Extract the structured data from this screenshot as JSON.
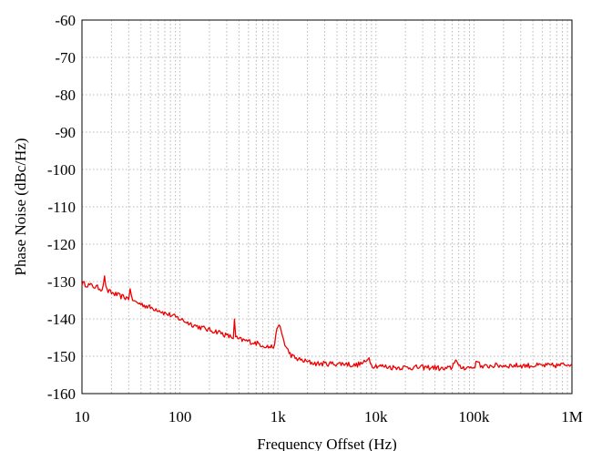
{
  "chart_data": {
    "type": "line",
    "title": "",
    "xlabel": "Frequency Offset (Hz)",
    "ylabel": "Phase Noise (dBc/Hz)",
    "x_scale": "log",
    "xlim": [
      10,
      1000000
    ],
    "ylim": [
      -160,
      -60
    ],
    "x_ticks": [
      10,
      100,
      1000,
      10000,
      100000,
      1000000
    ],
    "x_tick_labels": [
      "10",
      "100",
      "1k",
      "10k",
      "100k",
      "1M"
    ],
    "y_ticks": [
      -160,
      -150,
      -140,
      -130,
      -120,
      -110,
      -100,
      -90,
      -80,
      -70,
      -60
    ],
    "y_tick_labels": [
      "-160",
      "-150",
      "-140",
      "-130",
      "-120",
      "-110",
      "-100",
      "-90",
      "-80",
      "-70",
      "-60"
    ],
    "grid": true,
    "legend": "none",
    "series": [
      {
        "color": "#ee0000",
        "x": [
          10,
          12,
          14,
          16,
          17,
          18,
          20,
          25,
          30,
          31,
          32,
          35,
          40,
          50,
          60,
          70,
          80,
          100,
          120,
          150,
          200,
          250,
          300,
          350,
          360,
          370,
          400,
          500,
          600,
          700,
          800,
          900,
          950,
          1000,
          1050,
          1100,
          1150,
          1200,
          1300,
          1400,
          1500,
          1700,
          2000,
          2500,
          3000,
          4000,
          5000,
          6000,
          7000,
          8000,
          8500,
          9000,
          10000,
          15000,
          20000,
          30000,
          40000,
          50000,
          60000,
          65000,
          70000,
          80000,
          100000,
          110000,
          120000,
          150000,
          200000,
          300000,
          500000,
          700000,
          1000000
        ],
        "y": [
          -130.5,
          -131,
          -131.5,
          -132,
          -129,
          -132.5,
          -133,
          -134,
          -134.5,
          -131.5,
          -134.5,
          -135.5,
          -136,
          -137,
          -137.5,
          -138.5,
          -139,
          -140,
          -141,
          -142,
          -143,
          -143.5,
          -144.5,
          -145,
          -140.5,
          -145,
          -145.5,
          -146,
          -146.5,
          -147,
          -147.5,
          -147.5,
          -145,
          -141.5,
          -142.5,
          -144,
          -146,
          -147.5,
          -149,
          -150,
          -150.5,
          -151,
          -151.5,
          -152,
          -152,
          -152,
          -152,
          -152.5,
          -152,
          -151.5,
          -150,
          -152.5,
          -152.5,
          -153,
          -153,
          -153,
          -153,
          -153.5,
          -153,
          -150.5,
          -153,
          -153,
          -153,
          -151,
          -153,
          -152.5,
          -152.5,
          -152.5,
          -152.5,
          -152.5,
          -152
        ]
      }
    ]
  }
}
